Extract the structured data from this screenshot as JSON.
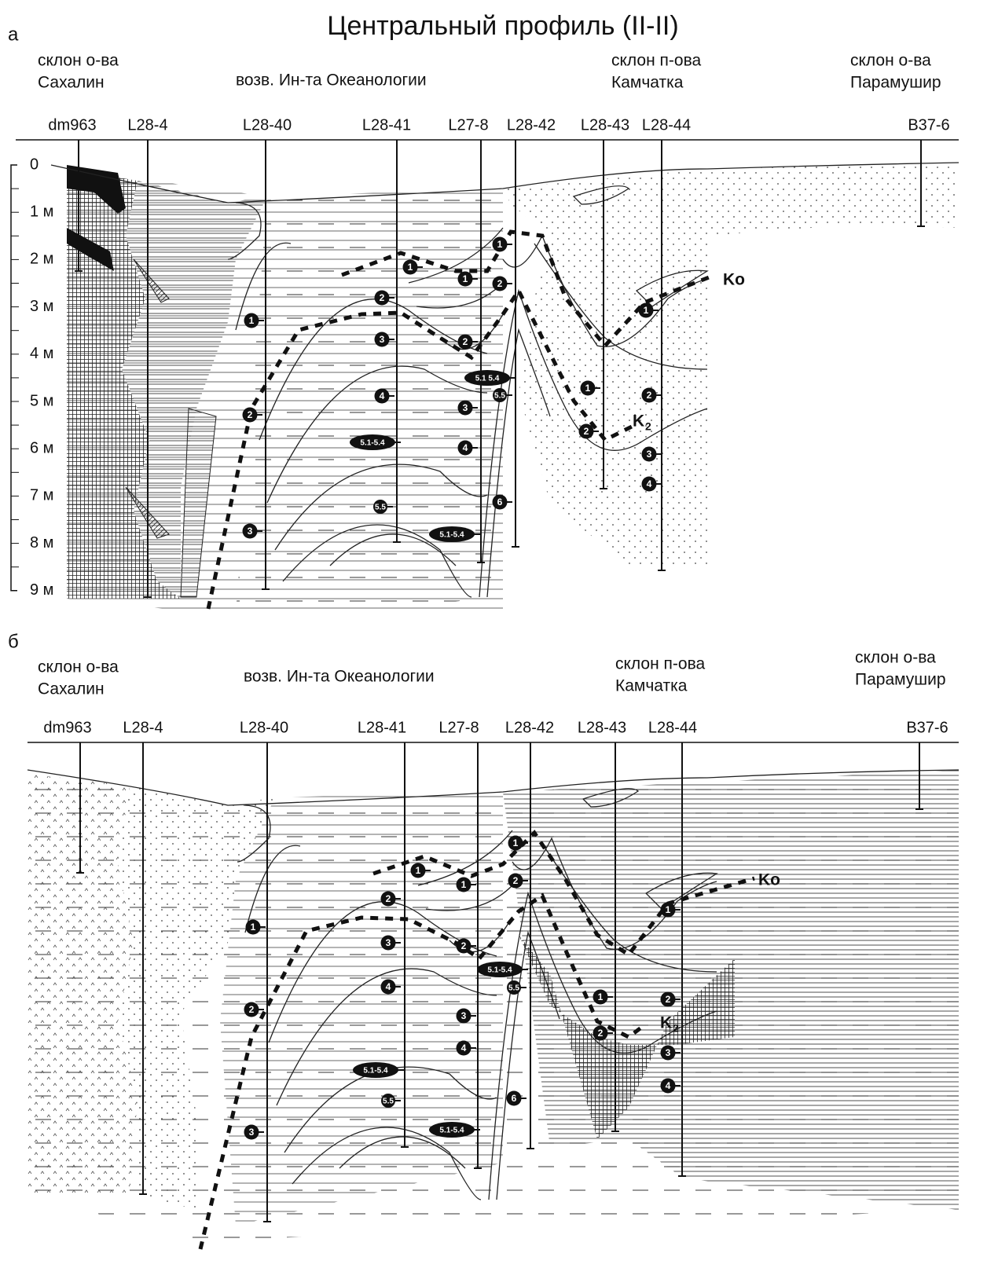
{
  "title": "Центральный профиль (II-II)",
  "panels": [
    {
      "label": "а",
      "regions": [
        [
          "склон о-ва",
          "Сахалин"
        ],
        [
          "возв. Ин-та Океанологии"
        ],
        [
          "склон п-ова",
          "Камчатка"
        ],
        [
          "склон о-ва",
          "Парамушир"
        ]
      ],
      "cores": [
        "dm963",
        "L28-4",
        "L28-40",
        "L28-41",
        "L27-8",
        "L28-42",
        "L28-43",
        "L28-44",
        "B37-6"
      ],
      "depth_labels": [
        "0",
        "1 м",
        "2 м",
        "3 м",
        "4 м",
        "5 м",
        "6 м",
        "7 м",
        "8 м",
        "9 м"
      ],
      "markers": [
        "1",
        "2",
        "3",
        "1",
        "2",
        "3",
        "4",
        "5.1-5.4",
        "5.5",
        "1",
        "2",
        "3",
        "4",
        "5.1-5.4",
        "1",
        "2",
        "5.1 5.4",
        "5.5",
        "6",
        "1",
        "2",
        "1",
        "2",
        "3",
        "4"
      ],
      "horizons": [
        {
          "name": "Ko"
        },
        {
          "name": "K",
          "subscript": "2"
        }
      ]
    },
    {
      "label": "б",
      "regions": [
        [
          "склон о-ва",
          "Сахалин"
        ],
        [
          "возв. Ин-та Океанологии"
        ],
        [
          "склон п-ова",
          "Камчатка"
        ],
        [
          "склон о-ва",
          "Парамушир"
        ]
      ],
      "cores": [
        "dm963",
        "L28-4",
        "L28-40",
        "L28-41",
        "L27-8",
        "L28-42",
        "L28-43",
        "L28-44",
        "B37-6"
      ],
      "markers": [
        "1",
        "2",
        "3",
        "1",
        "2",
        "3",
        "4",
        "5.1-5.4",
        "5.5",
        "1",
        "2",
        "3",
        "4",
        "5.1-5.4",
        "1",
        "2",
        "5.1-5.4",
        "5.5",
        "6",
        "1",
        "2",
        "1",
        "2",
        "3",
        "4"
      ],
      "horizons": [
        {
          "name": "Ko"
        },
        {
          "name": "K",
          "subscript": "2"
        }
      ]
    }
  ]
}
